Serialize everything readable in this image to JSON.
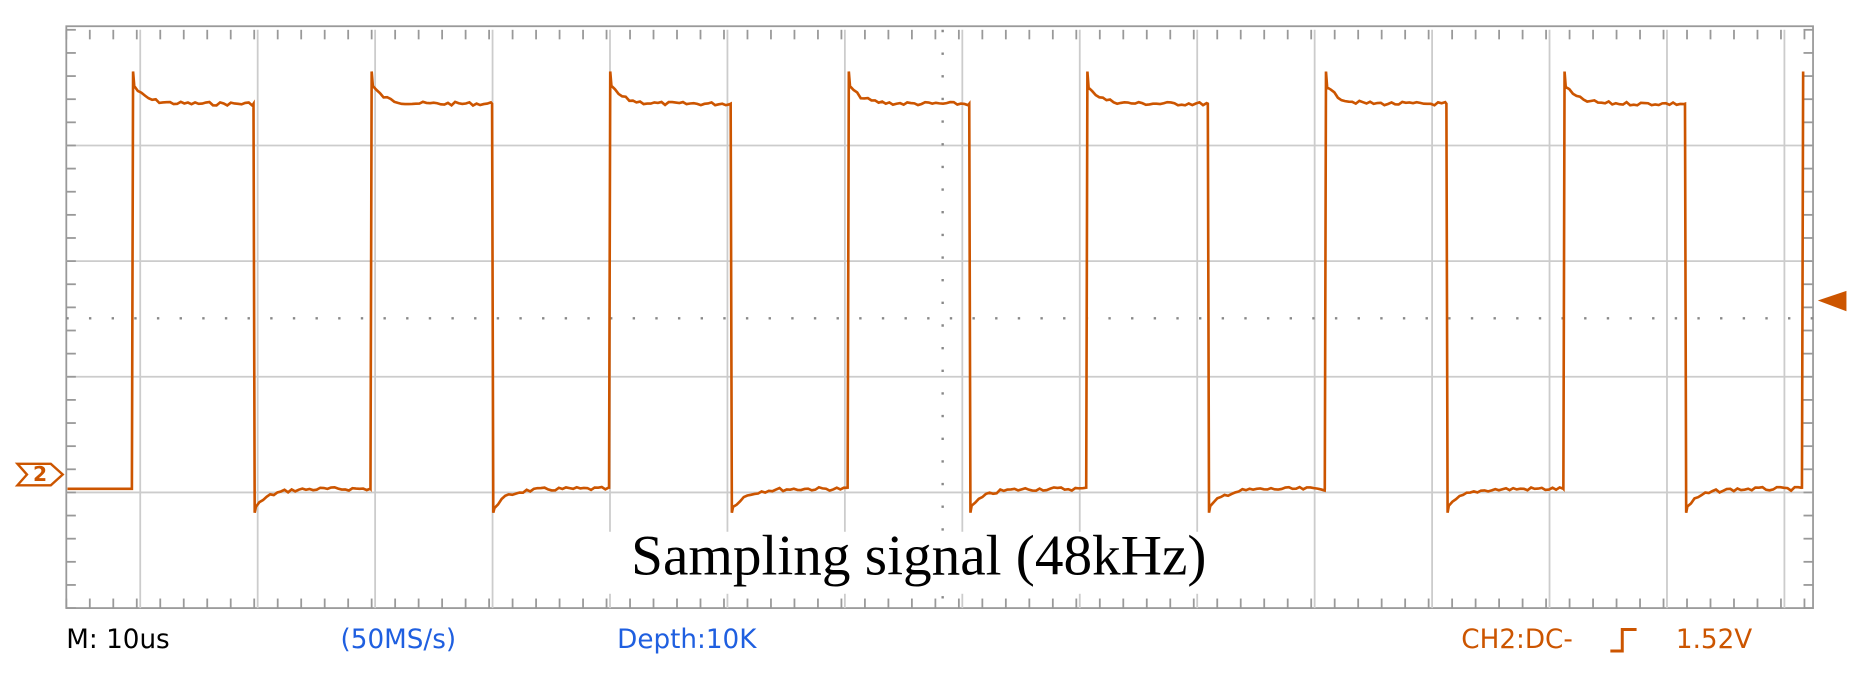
{
  "status_bar": {
    "timebase": "M: 10us",
    "sample_rate": "(50MS/s)",
    "depth": "Depth:10K",
    "trigger_channel": "CH2:DC-",
    "trigger_level": "1.52V"
  },
  "channel_marker": "2",
  "caption": "Sampling signal (48kHz)"
}
